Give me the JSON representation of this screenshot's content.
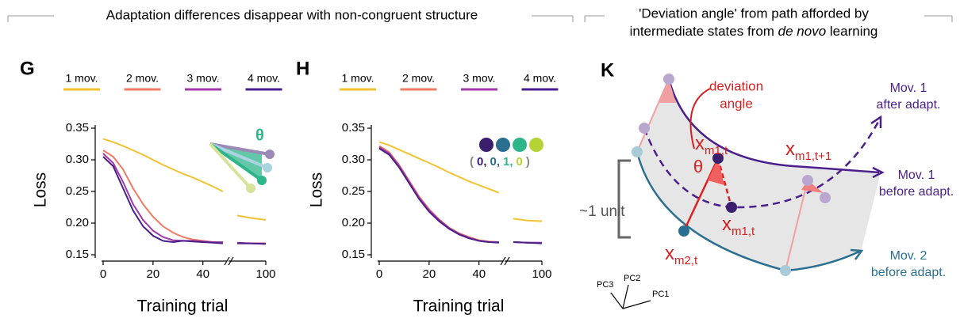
{
  "headers": {
    "left": "Adaptation differences disappear with non-congruent structure",
    "right": {
      "line1": "'Deviation angle' from path afforded by",
      "line2": [
        "intermediate states from ",
        "de novo",
        " learning"
      ]
    }
  },
  "chart_data": [
    {
      "type": "line",
      "panel": "G",
      "ylabel": "Loss",
      "xlabel": "Training trial",
      "x": [
        0,
        4,
        8,
        12,
        16,
        20,
        24,
        28,
        32,
        36,
        40,
        44,
        48
      ],
      "x_right": [
        92,
        96,
        100
      ],
      "xlim": [
        0,
        49
      ],
      "xticks": [
        0,
        20,
        40
      ],
      "xlim_right": [
        90,
        100
      ],
      "xticks_right": [
        100
      ],
      "ylim": [
        0.15,
        0.355
      ],
      "yticks": [
        0.15,
        {
          "value": 0.2,
          "label": "0.20"
        },
        0.25,
        {
          "value": 0.3,
          "label": "0.30"
        },
        0.35
      ],
      "series": [
        {
          "name": "1 mov.",
          "color": "#f2c230",
          "values": [
            0.333,
            0.328,
            0.322,
            0.315,
            0.308,
            0.3,
            0.292,
            0.285,
            0.278,
            0.272,
            0.265,
            0.258,
            0.25
          ],
          "values_right": [
            0.212,
            0.208,
            0.205
          ]
        },
        {
          "name": "2 mov.",
          "color": "#ef7b62",
          "values": [
            0.315,
            0.305,
            0.285,
            0.255,
            0.23,
            0.21,
            0.195,
            0.185,
            0.178,
            0.174,
            0.172,
            0.17,
            0.17
          ],
          "values_right": [
            0.168,
            0.168,
            0.168
          ]
        },
        {
          "name": "3 mov.",
          "color": "#a03aa6",
          "values": [
            0.31,
            0.295,
            0.265,
            0.23,
            0.205,
            0.188,
            0.178,
            0.173,
            0.172,
            0.172,
            0.171,
            0.17,
            0.17
          ],
          "values_right": [
            0.169,
            0.168,
            0.168
          ]
        },
        {
          "name": "4 mov.",
          "color": "#4a1f8c",
          "values": [
            0.305,
            0.29,
            0.255,
            0.22,
            0.195,
            0.18,
            0.172,
            0.17,
            0.172,
            0.171,
            0.17,
            0.169,
            0.168
          ],
          "values_right": [
            0.168,
            0.168,
            0.167
          ]
        }
      ],
      "annotation": "θ"
    },
    {
      "type": "line",
      "panel": "H",
      "ylabel": "Loss",
      "xlabel": "Training trial",
      "x": [
        0,
        4,
        8,
        12,
        16,
        20,
        24,
        28,
        32,
        36,
        40,
        44,
        48
      ],
      "x_right": [
        92,
        96,
        100
      ],
      "xlim": [
        0,
        49
      ],
      "xticks": [
        0,
        20,
        40
      ],
      "xlim_right": [
        90,
        100
      ],
      "xticks_right": [
        100
      ],
      "ylim": [
        0.15,
        0.355
      ],
      "yticks": [
        0.15,
        {
          "value": 0.2,
          "label": "0.20"
        },
        0.25,
        {
          "value": 0.3,
          "label": "0.30"
        },
        0.35
      ],
      "series": [
        {
          "name": "1 mov.",
          "color": "#f2c230",
          "values": [
            0.328,
            0.323,
            0.316,
            0.309,
            0.302,
            0.295,
            0.288,
            0.28,
            0.273,
            0.266,
            0.26,
            0.254,
            0.248
          ],
          "values_right": [
            0.207,
            0.204,
            0.203
          ]
        },
        {
          "name": "2 mov.",
          "color": "#ef7b62",
          "values": [
            0.322,
            0.312,
            0.292,
            0.267,
            0.242,
            0.222,
            0.206,
            0.193,
            0.184,
            0.178,
            0.173,
            0.171,
            0.17
          ],
          "values_right": [
            0.17,
            0.169,
            0.169
          ]
        },
        {
          "name": "3 mov.",
          "color": "#a03aa6",
          "values": [
            0.32,
            0.31,
            0.29,
            0.265,
            0.24,
            0.22,
            0.205,
            0.192,
            0.183,
            0.177,
            0.172,
            0.17,
            0.17
          ],
          "values_right": [
            0.17,
            0.169,
            0.169
          ]
        },
        {
          "name": "4 mov.",
          "color": "#4a1f8c",
          "values": [
            0.318,
            0.308,
            0.288,
            0.263,
            0.238,
            0.218,
            0.203,
            0.191,
            0.182,
            0.176,
            0.172,
            0.17,
            0.169
          ],
          "values_right": [
            0.17,
            0.169,
            0.168
          ]
        }
      ],
      "code": {
        "open": "(",
        "close": ")",
        "digits": [
          "0,",
          "0,",
          "1,",
          "0"
        ],
        "colors": [
          "#3b1f6e",
          "#2a6f8f",
          "#2fb58a",
          "#b5d334"
        ]
      }
    }
  ],
  "diagram": {
    "panel": "K",
    "deviation": [
      "deviation",
      "angle"
    ],
    "theta": "θ",
    "points": {
      "m1t": {
        "main": "x",
        "sub": "m1,t"
      },
      "m1t1": {
        "main": "x",
        "sub": "m1,t+1"
      },
      "m1t_after": {
        "main": "x",
        "sub": "m1,t"
      },
      "m2t": {
        "main": "x",
        "sub": "m2,t"
      }
    },
    "paths": {
      "after1": [
        "Mov. 1",
        "after adapt."
      ],
      "before1": [
        "Mov. 1",
        "before adapt."
      ],
      "before2": [
        "Mov. 2",
        "before adapt."
      ]
    },
    "scale": "~1 unit",
    "axes": [
      "PC1",
      "PC2",
      "PC3"
    ]
  }
}
